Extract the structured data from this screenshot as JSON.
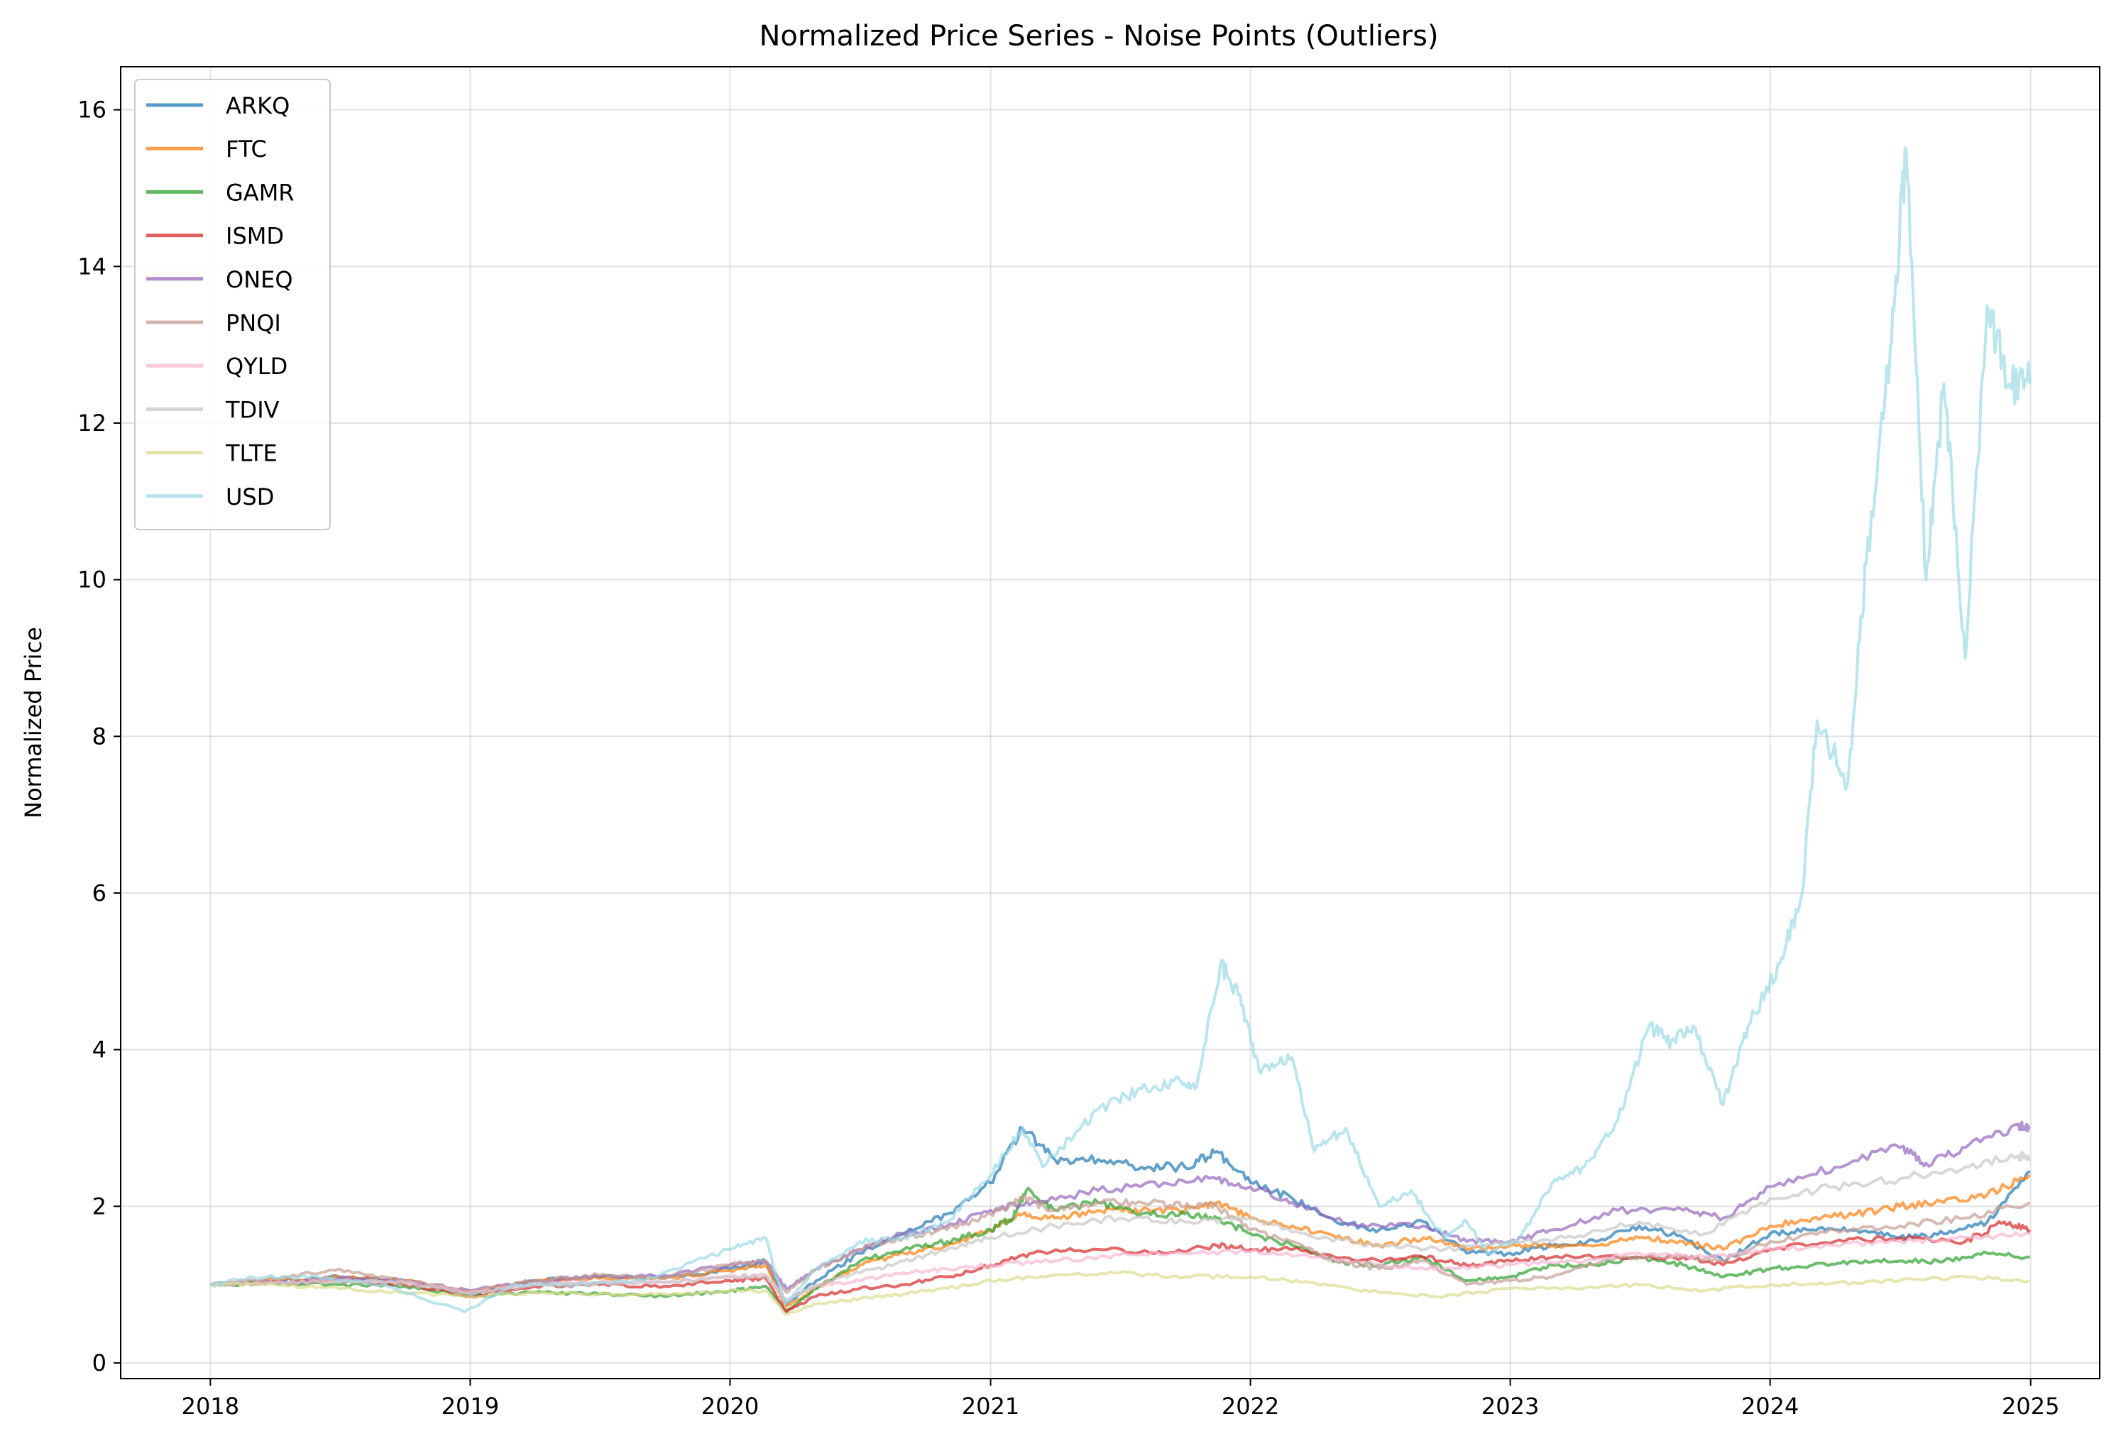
{
  "chart_data": {
    "type": "line",
    "title": "Normalized Price Series - Noise Points (Outliers)",
    "xlabel": "",
    "ylabel": "Normalized Price",
    "x_ticks": [
      "2018",
      "2019",
      "2020",
      "2021",
      "2022",
      "2023",
      "2024",
      "2025"
    ],
    "xlim": [
      "2017-08-28",
      "2025-04-08"
    ],
    "y_ticks": [
      "0",
      "2",
      "4",
      "6",
      "8",
      "10",
      "12",
      "14",
      "16"
    ],
    "ylim": [
      -0.2,
      16.55
    ],
    "grid": true,
    "legend_position": "top-left",
    "series": [
      {
        "name": "ARKQ",
        "color": "#1f77b4",
        "x": [
          "2018-01-01",
          "2018-04-01",
          "2018-07-01",
          "2018-10-01",
          "2019-01-01",
          "2019-04-01",
          "2019-07-01",
          "2019-10-01",
          "2020-01-01",
          "2020-02-20",
          "2020-03-20",
          "2020-05-01",
          "2020-07-01",
          "2020-09-01",
          "2020-11-01",
          "2021-01-01",
          "2021-02-15",
          "2021-04-01",
          "2021-06-01",
          "2021-08-01",
          "2021-10-01",
          "2021-11-15",
          "2022-01-01",
          "2022-03-01",
          "2022-05-01",
          "2022-07-01",
          "2022-09-01",
          "2022-11-01",
          "2023-01-01",
          "2023-03-01",
          "2023-05-01",
          "2023-07-01",
          "2023-09-01",
          "2023-10-27",
          "2024-01-01",
          "2024-03-01",
          "2024-05-01",
          "2024-07-01",
          "2024-09-01",
          "2024-11-01",
          "2024-12-31"
        ],
        "y": [
          1.0,
          1.05,
          1.1,
          1.05,
          0.88,
          1.05,
          1.1,
          1.08,
          1.2,
          1.3,
          0.75,
          1.05,
          1.4,
          1.65,
          1.9,
          2.3,
          3.0,
          2.6,
          2.6,
          2.5,
          2.5,
          2.7,
          2.3,
          2.1,
          1.8,
          1.7,
          1.8,
          1.4,
          1.4,
          1.5,
          1.55,
          1.75,
          1.6,
          1.3,
          1.65,
          1.7,
          1.7,
          1.6,
          1.65,
          1.8,
          2.45
        ]
      },
      {
        "name": "FTC",
        "color": "#ff7f0e",
        "x": [
          "2018-01-01",
          "2018-04-01",
          "2018-07-01",
          "2018-10-01",
          "2019-01-01",
          "2019-04-01",
          "2019-07-01",
          "2019-10-01",
          "2020-01-01",
          "2020-02-20",
          "2020-03-20",
          "2020-05-01",
          "2020-07-01",
          "2020-09-01",
          "2020-11-01",
          "2021-01-01",
          "2021-02-15",
          "2021-04-01",
          "2021-06-01",
          "2021-08-01",
          "2021-10-01",
          "2021-11-15",
          "2022-01-01",
          "2022-03-01",
          "2022-05-01",
          "2022-07-01",
          "2022-09-01",
          "2022-11-01",
          "2023-01-01",
          "2023-03-01",
          "2023-05-01",
          "2023-07-01",
          "2023-09-01",
          "2023-10-27",
          "2024-01-01",
          "2024-03-01",
          "2024-05-01",
          "2024-07-01",
          "2024-09-01",
          "2024-11-01",
          "2024-12-31"
        ],
        "y": [
          1.0,
          1.05,
          1.1,
          1.05,
          0.9,
          1.05,
          1.08,
          1.08,
          1.18,
          1.25,
          0.72,
          0.95,
          1.25,
          1.4,
          1.5,
          1.7,
          1.9,
          1.85,
          1.95,
          1.95,
          1.95,
          2.05,
          1.85,
          1.75,
          1.6,
          1.5,
          1.6,
          1.45,
          1.5,
          1.5,
          1.5,
          1.6,
          1.55,
          1.45,
          1.75,
          1.85,
          1.9,
          2.0,
          2.05,
          2.15,
          2.4
        ]
      },
      {
        "name": "GAMR",
        "color": "#2ca02c",
        "x": [
          "2018-01-01",
          "2018-04-01",
          "2018-07-01",
          "2018-10-01",
          "2019-01-01",
          "2019-04-01",
          "2019-07-01",
          "2019-10-01",
          "2020-01-01",
          "2020-02-20",
          "2020-03-20",
          "2020-05-01",
          "2020-07-01",
          "2020-09-01",
          "2020-11-01",
          "2021-01-01",
          "2021-02-01",
          "2021-02-20",
          "2021-04-01",
          "2021-06-01",
          "2021-08-01",
          "2021-10-01",
          "2021-11-15",
          "2022-01-01",
          "2022-03-01",
          "2022-05-01",
          "2022-07-01",
          "2022-09-01",
          "2022-11-01",
          "2023-01-01",
          "2023-03-01",
          "2023-05-01",
          "2023-07-01",
          "2023-09-01",
          "2023-10-27",
          "2024-01-01",
          "2024-03-01",
          "2024-05-01",
          "2024-07-01",
          "2024-09-01",
          "2024-11-01",
          "2024-12-31"
        ],
        "y": [
          1.0,
          1.02,
          1.0,
          0.98,
          0.85,
          0.9,
          0.88,
          0.85,
          0.92,
          0.98,
          0.65,
          0.95,
          1.3,
          1.45,
          1.55,
          1.7,
          1.85,
          2.2,
          1.95,
          2.05,
          1.9,
          1.9,
          1.85,
          1.65,
          1.5,
          1.3,
          1.25,
          1.35,
          1.05,
          1.1,
          1.25,
          1.25,
          1.35,
          1.25,
          1.1,
          1.2,
          1.25,
          1.3,
          1.3,
          1.3,
          1.4,
          1.35
        ]
      },
      {
        "name": "ISMD",
        "color": "#d62728",
        "x": [
          "2018-01-01",
          "2018-04-01",
          "2018-07-01",
          "2018-10-01",
          "2019-01-01",
          "2019-04-01",
          "2019-07-01",
          "2019-10-01",
          "2020-01-01",
          "2020-02-20",
          "2020-03-20",
          "2020-05-01",
          "2020-07-01",
          "2020-09-01",
          "2020-11-01",
          "2021-01-01",
          "2021-03-01",
          "2021-06-01",
          "2021-09-01",
          "2021-11-15",
          "2022-01-01",
          "2022-03-01",
          "2022-06-01",
          "2022-09-01",
          "2022-11-01",
          "2023-01-01",
          "2023-03-01",
          "2023-06-01",
          "2023-09-01",
          "2023-10-27",
          "2024-01-01",
          "2024-04-01",
          "2024-07-01",
          "2024-10-01",
          "2024-11-25",
          "2024-12-31"
        ],
        "y": [
          1.0,
          1.02,
          1.05,
          1.0,
          0.85,
          0.98,
          1.0,
          0.98,
          1.05,
          1.08,
          0.65,
          0.85,
          0.95,
          1.0,
          1.1,
          1.25,
          1.4,
          1.45,
          1.4,
          1.5,
          1.45,
          1.45,
          1.3,
          1.35,
          1.25,
          1.3,
          1.35,
          1.35,
          1.35,
          1.25,
          1.45,
          1.55,
          1.6,
          1.55,
          1.8,
          1.7
        ]
      },
      {
        "name": "ONEQ",
        "color": "#9467bd",
        "x": [
          "2018-01-01",
          "2018-04-01",
          "2018-07-01",
          "2018-10-01",
          "2019-01-01",
          "2019-04-01",
          "2019-07-01",
          "2019-10-01",
          "2020-01-01",
          "2020-02-20",
          "2020-03-20",
          "2020-05-01",
          "2020-07-01",
          "2020-09-01",
          "2020-11-01",
          "2021-01-01",
          "2021-03-01",
          "2021-06-01",
          "2021-09-01",
          "2021-11-15",
          "2022-01-01",
          "2022-03-01",
          "2022-06-01",
          "2022-09-01",
          "2022-11-01",
          "2023-01-01",
          "2023-03-01",
          "2023-06-01",
          "2023-09-01",
          "2023-10-27",
          "2024-01-01",
          "2024-04-01",
          "2024-07-01",
          "2024-08-07",
          "2024-10-01",
          "2024-12-15",
          "2024-12-31"
        ],
        "y": [
          1.0,
          1.02,
          1.08,
          1.05,
          0.92,
          1.05,
          1.1,
          1.12,
          1.25,
          1.3,
          0.95,
          1.2,
          1.45,
          1.65,
          1.75,
          1.95,
          2.05,
          2.2,
          2.3,
          2.35,
          2.25,
          2.05,
          1.75,
          1.75,
          1.55,
          1.55,
          1.7,
          1.95,
          1.95,
          1.85,
          2.25,
          2.5,
          2.75,
          2.55,
          2.75,
          3.05,
          3.0
        ]
      },
      {
        "name": "PNQI",
        "color": "#c49c94",
        "x": [
          "2018-01-01",
          "2018-04-01",
          "2018-07-01",
          "2018-10-01",
          "2019-01-01",
          "2019-04-01",
          "2019-07-01",
          "2019-10-01",
          "2020-01-01",
          "2020-02-20",
          "2020-03-20",
          "2020-05-01",
          "2020-07-01",
          "2020-09-01",
          "2020-11-01",
          "2021-01-01",
          "2021-02-15",
          "2021-04-01",
          "2021-06-01",
          "2021-08-01",
          "2021-10-01",
          "2021-11-15",
          "2022-01-01",
          "2022-03-01",
          "2022-05-01",
          "2022-07-01",
          "2022-09-01",
          "2022-11-01",
          "2023-01-01",
          "2023-03-01",
          "2023-06-01",
          "2023-09-01",
          "2023-10-27",
          "2024-01-01",
          "2024-04-01",
          "2024-07-01",
          "2024-10-01",
          "2024-12-31"
        ],
        "y": [
          1.0,
          1.08,
          1.2,
          1.05,
          0.92,
          1.05,
          1.12,
          1.08,
          1.25,
          1.3,
          0.9,
          1.2,
          1.45,
          1.6,
          1.7,
          1.9,
          2.1,
          1.95,
          2.05,
          2.05,
          2.0,
          2.0,
          1.7,
          1.55,
          1.3,
          1.2,
          1.3,
          1.0,
          1.05,
          1.1,
          1.35,
          1.35,
          1.3,
          1.55,
          1.7,
          1.75,
          1.85,
          2.05
        ]
      },
      {
        "name": "QYLD",
        "color": "#f7b6d2",
        "x": [
          "2018-01-01",
          "2018-04-01",
          "2018-07-01",
          "2018-10-01",
          "2019-01-01",
          "2019-04-01",
          "2019-07-01",
          "2019-10-01",
          "2020-01-01",
          "2020-02-20",
          "2020-03-20",
          "2020-05-01",
          "2020-07-01",
          "2020-09-01",
          "2020-11-01",
          "2021-01-01",
          "2021-04-01",
          "2021-07-01",
          "2021-10-01",
          "2022-01-01",
          "2022-04-01",
          "2022-07-01",
          "2022-10-01",
          "2023-01-01",
          "2023-04-01",
          "2023-07-01",
          "2023-10-01",
          "2024-01-01",
          "2024-04-01",
          "2024-07-01",
          "2024-10-01",
          "2024-12-31"
        ],
        "y": [
          1.0,
          1.02,
          1.05,
          1.03,
          0.9,
          1.0,
          1.03,
          1.03,
          1.1,
          1.12,
          0.8,
          0.98,
          1.05,
          1.15,
          1.2,
          1.25,
          1.3,
          1.38,
          1.4,
          1.42,
          1.35,
          1.25,
          1.2,
          1.25,
          1.3,
          1.4,
          1.35,
          1.45,
          1.5,
          1.55,
          1.6,
          1.65
        ]
      },
      {
        "name": "TDIV",
        "color": "#c7c7c7",
        "x": [
          "2018-01-01",
          "2018-04-01",
          "2018-07-01",
          "2018-10-01",
          "2019-01-01",
          "2019-04-01",
          "2019-07-01",
          "2019-10-01",
          "2020-01-01",
          "2020-02-20",
          "2020-03-20",
          "2020-05-01",
          "2020-07-01",
          "2020-09-01",
          "2020-11-01",
          "2021-01-01",
          "2021-04-01",
          "2021-07-01",
          "2021-10-01",
          "2022-01-01",
          "2022-04-01",
          "2022-07-01",
          "2022-10-01",
          "2023-01-01",
          "2023-04-01",
          "2023-07-01",
          "2023-10-01",
          "2024-01-01",
          "2024-04-01",
          "2024-07-01",
          "2024-10-01",
          "2024-12-15",
          "2024-12-31"
        ],
        "y": [
          1.0,
          1.02,
          1.05,
          1.02,
          0.88,
          1.0,
          1.02,
          1.03,
          1.1,
          1.12,
          0.8,
          1.0,
          1.15,
          1.3,
          1.45,
          1.6,
          1.75,
          1.85,
          1.8,
          1.85,
          1.6,
          1.5,
          1.45,
          1.55,
          1.6,
          1.8,
          1.65,
          2.1,
          2.25,
          2.35,
          2.5,
          2.65,
          2.6
        ]
      },
      {
        "name": "TLTE",
        "color": "#dbdb8d",
        "x": [
          "2018-01-01",
          "2018-04-01",
          "2018-07-01",
          "2018-10-01",
          "2019-01-01",
          "2019-04-01",
          "2019-07-01",
          "2019-10-01",
          "2020-01-01",
          "2020-02-20",
          "2020-03-20",
          "2020-05-01",
          "2020-07-01",
          "2020-09-01",
          "2020-11-01",
          "2021-01-01",
          "2021-04-01",
          "2021-07-01",
          "2021-10-01",
          "2022-01-01",
          "2022-04-01",
          "2022-07-01",
          "2022-10-01",
          "2023-01-01",
          "2023-04-01",
          "2023-07-01",
          "2023-10-01",
          "2024-01-01",
          "2024-04-01",
          "2024-07-01",
          "2024-10-01",
          "2024-12-31"
        ],
        "y": [
          1.0,
          1.0,
          0.95,
          0.9,
          0.85,
          0.9,
          0.88,
          0.88,
          0.92,
          0.92,
          0.62,
          0.75,
          0.82,
          0.88,
          0.95,
          1.05,
          1.12,
          1.15,
          1.1,
          1.1,
          1.02,
          0.9,
          0.85,
          0.95,
          0.95,
          1.0,
          0.92,
          1.0,
          1.02,
          1.05,
          1.1,
          1.05
        ]
      },
      {
        "name": "USD",
        "color": "#9edae5",
        "x": [
          "2018-01-01",
          "2018-03-01",
          "2018-06-01",
          "2018-09-01",
          "2018-12-24",
          "2019-03-01",
          "2019-06-01",
          "2019-09-01",
          "2020-01-01",
          "2020-02-20",
          "2020-03-18",
          "2020-05-01",
          "2020-07-01",
          "2020-09-01",
          "2020-11-01",
          "2021-01-01",
          "2021-02-15",
          "2021-03-15",
          "2021-05-01",
          "2021-06-15",
          "2021-08-01",
          "2021-09-15",
          "2021-10-15",
          "2021-11-20",
          "2021-12-15",
          "2022-01-15",
          "2022-03-01",
          "2022-04-01",
          "2022-05-15",
          "2022-07-01",
          "2022-08-15",
          "2022-09-30",
          "2022-11-01",
          "2022-12-01",
          "2023-01-15",
          "2023-03-01",
          "2023-04-15",
          "2023-06-01",
          "2023-07-15",
          "2023-08-15",
          "2023-09-15",
          "2023-10-27",
          "2023-12-01",
          "2024-01-15",
          "2024-02-15",
          "2024-03-07",
          "2024-04-19",
          "2024-05-15",
          "2024-06-18",
          "2024-07-10",
          "2024-08-07",
          "2024-09-01",
          "2024-10-01",
          "2024-11-01",
          "2024-12-01",
          "2024-12-31"
        ],
        "y": [
          1.0,
          1.1,
          1.1,
          1.0,
          0.65,
          1.0,
          1.0,
          1.05,
          1.45,
          1.6,
          0.75,
          1.2,
          1.55,
          1.6,
          1.8,
          2.4,
          3.0,
          2.5,
          2.95,
          3.3,
          3.5,
          3.6,
          3.5,
          5.1,
          4.7,
          3.7,
          3.9,
          2.7,
          3.0,
          2.0,
          2.2,
          1.6,
          1.8,
          1.4,
          1.6,
          2.3,
          2.5,
          3.1,
          4.3,
          4.1,
          4.3,
          3.3,
          4.3,
          5.1,
          6.0,
          8.2,
          7.4,
          10.2,
          13.0,
          15.5,
          10.0,
          12.5,
          9.0,
          13.5,
          12.5,
          12.5
        ]
      }
    ]
  }
}
